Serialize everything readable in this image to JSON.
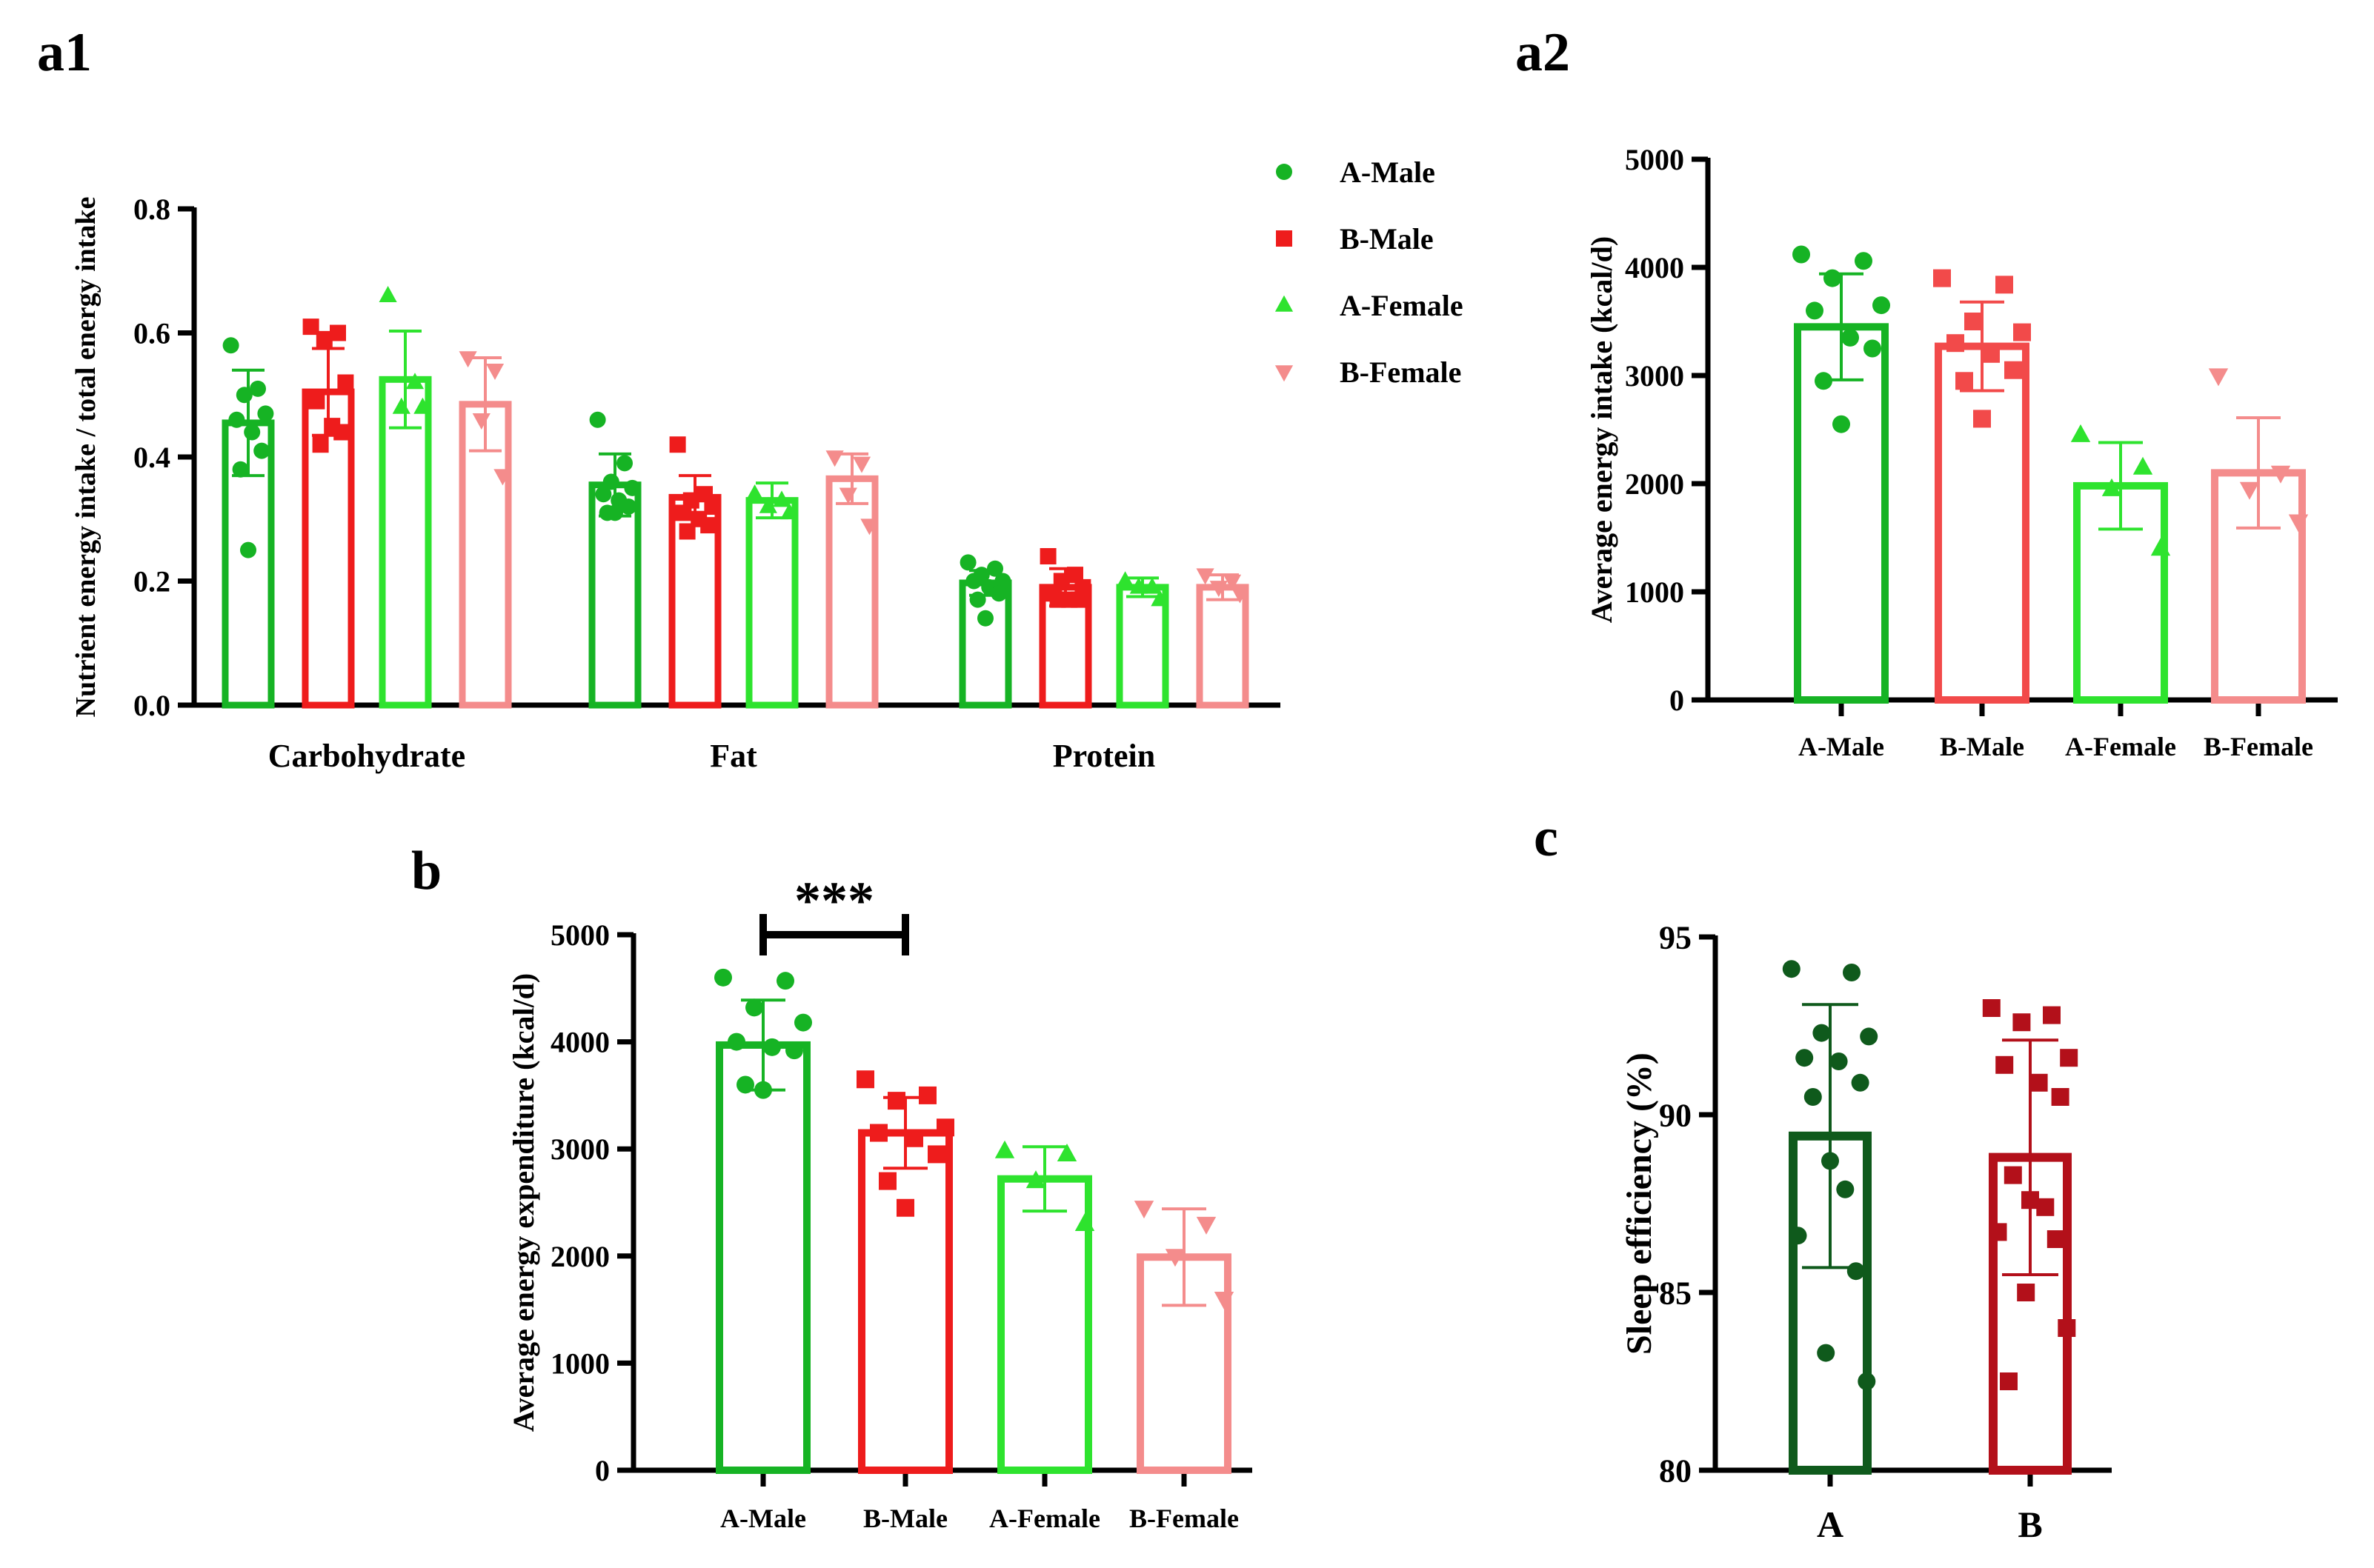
{
  "colors": {
    "a1": {
      "A-Male": "#16b324",
      "B-Male": "#ee1c1c",
      "A-Female": "#2ee32e",
      "B-Female": "#f48c8c"
    },
    "a2": {
      "A-Male": "#16b324",
      "B-Male": "#f24a4a",
      "A-Female": "#2ee32e",
      "B-Female": "#f48c8c"
    },
    "b": {
      "A-Male": "#16b324",
      "B-Male": "#ee1c1c",
      "A-Female": "#2ee32e",
      "B-Female": "#f48c8c"
    },
    "c": {
      "A": "#0f5a1c",
      "B": "#b3101a"
    }
  },
  "legend": {
    "entries": [
      {
        "label": "A-Male",
        "marker": "circle"
      },
      {
        "label": "B-Male",
        "marker": "square"
      },
      {
        "label": "A-Female",
        "marker": "triangle"
      },
      {
        "label": "B-Female",
        "marker": "triangle-down"
      }
    ]
  },
  "chart_data": [
    {
      "panel": "a1",
      "type": "bar",
      "title": "",
      "xlabel": "",
      "ylabel": "Nutrient energy intake / total energy intake",
      "ylim": [
        0,
        0.8
      ],
      "yticks": [
        "0.0",
        "0.2",
        "0.4",
        "0.6",
        "0.8"
      ],
      "categories": [
        "Carbohydrate",
        "Fat",
        "Protein"
      ],
      "series": [
        {
          "name": "A-Male",
          "marker": "circle",
          "values": [
            0.455,
            0.355,
            0.197
          ],
          "sd": [
            0.085,
            0.05,
            0.02
          ],
          "points": [
            [
              0.58,
              0.51,
              0.5,
              0.47,
              0.46,
              0.44,
              0.41,
              0.38,
              0.25
            ],
            [
              0.46,
              0.39,
              0.36,
              0.35,
              0.34,
              0.33,
              0.32,
              0.31,
              0.31
            ],
            [
              0.23,
              0.22,
              0.21,
              0.2,
              0.2,
              0.19,
              0.18,
              0.17,
              0.14
            ]
          ]
        },
        {
          "name": "B-Male",
          "marker": "square",
          "values": [
            0.505,
            0.335,
            0.19
          ],
          "sd": [
            0.07,
            0.035,
            0.03
          ],
          "points": [
            [
              0.61,
              0.6,
              0.59,
              0.52,
              0.49,
              0.45,
              0.44,
              0.42
            ],
            [
              0.42,
              0.34,
              0.33,
              0.32,
              0.31,
              0.3,
              0.29,
              0.28
            ],
            [
              0.24,
              0.21,
              0.2,
              0.19,
              0.18,
              0.17,
              0.17,
              0.17
            ]
          ]
        },
        {
          "name": "A-Female",
          "marker": "triangle",
          "values": [
            0.525,
            0.33,
            0.19
          ],
          "sd": [
            0.078,
            0.028,
            0.015
          ],
          "points": [
            [
              0.66,
              0.52,
              0.48,
              0.48
            ],
            [
              0.34,
              0.33,
              0.32,
              0.31
            ],
            [
              0.2,
              0.19,
              0.19,
              0.17
            ]
          ]
        },
        {
          "name": "B-Female",
          "marker": "triangle-down",
          "values": [
            0.485,
            0.365,
            0.19
          ],
          "sd": [
            0.075,
            0.04,
            0.02
          ],
          "points": [
            [
              0.56,
              0.54,
              0.46,
              0.37
            ],
            [
              0.4,
              0.39,
              0.34,
              0.29
            ],
            [
              0.21,
              0.2,
              0.19,
              0.18
            ]
          ]
        }
      ]
    },
    {
      "panel": "a2",
      "type": "bar",
      "title": "",
      "xlabel": "",
      "ylabel": "Average energy intake (kcal/d)",
      "ylim": [
        0,
        5000
      ],
      "yticks": [
        "0",
        "1000",
        "2000",
        "3000",
        "4000",
        "5000"
      ],
      "categories": [
        "A-Male",
        "B-Male",
        "A-Female",
        "B-Female"
      ],
      "markers": [
        "circle",
        "square",
        "triangle",
        "triangle-down"
      ],
      "values": [
        3450,
        3270,
        1980,
        2100
      ],
      "sd": [
        490,
        410,
        400,
        510
      ],
      "points": [
        [
          4120,
          4060,
          3900,
          3650,
          3600,
          3350,
          3250,
          2950,
          2550
        ],
        [
          3900,
          3840,
          3500,
          3400,
          3300,
          3200,
          3050,
          2950,
          2600
        ],
        [
          2450,
          2150,
          1950,
          1400
        ],
        [
          3000,
          2100,
          1950,
          1650
        ]
      ]
    },
    {
      "panel": "b",
      "type": "bar",
      "title": "",
      "xlabel": "",
      "ylabel": "Average energy expenditure (kcal/d)",
      "ylim": [
        0,
        5000
      ],
      "yticks": [
        "0",
        "1000",
        "2000",
        "3000",
        "4000",
        "5000"
      ],
      "categories": [
        "A-Male",
        "B-Male",
        "A-Female",
        "B-Female"
      ],
      "markers": [
        "circle",
        "square",
        "triangle",
        "triangle-down"
      ],
      "values": [
        3970,
        3150,
        2720,
        1990
      ],
      "sd": [
        420,
        330,
        300,
        450
      ],
      "points": [
        [
          4600,
          4570,
          4320,
          4180,
          4000,
          3950,
          3920,
          3600,
          3550
        ],
        [
          3650,
          3500,
          3450,
          3200,
          3150,
          3100,
          2950,
          2700,
          2450
        ],
        [
          2980,
          2950,
          2700,
          2300
        ],
        [
          2450,
          2300,
          2000,
          1600
        ]
      ],
      "annotation": {
        "text": "***",
        "from": "A-Male",
        "to": "B-Male"
      }
    },
    {
      "panel": "c",
      "type": "bar",
      "title": "",
      "xlabel": "",
      "ylabel": "Sleep efficiency (%)",
      "ylim": [
        80,
        95
      ],
      "yticks": [
        "80",
        "85",
        "90",
        "95"
      ],
      "categories": [
        "A",
        "B"
      ],
      "markers": [
        "circle",
        "square"
      ],
      "values": [
        89.4,
        88.8
      ],
      "sd": [
        3.7,
        3.3
      ],
      "points": [
        [
          94.1,
          94.0,
          92.3,
          92.2,
          91.6,
          91.5,
          90.9,
          90.5,
          88.7,
          87.9,
          86.6,
          85.6,
          83.3,
          82.5
        ],
        [
          93.0,
          92.8,
          92.6,
          91.6,
          91.4,
          90.9,
          90.5,
          88.3,
          87.6,
          87.4,
          86.7,
          86.5,
          85.0,
          84.0,
          82.5
        ]
      ]
    }
  ],
  "panel_labels": {
    "a1": "a1",
    "a2": "a2",
    "b": "b",
    "c": "c"
  }
}
